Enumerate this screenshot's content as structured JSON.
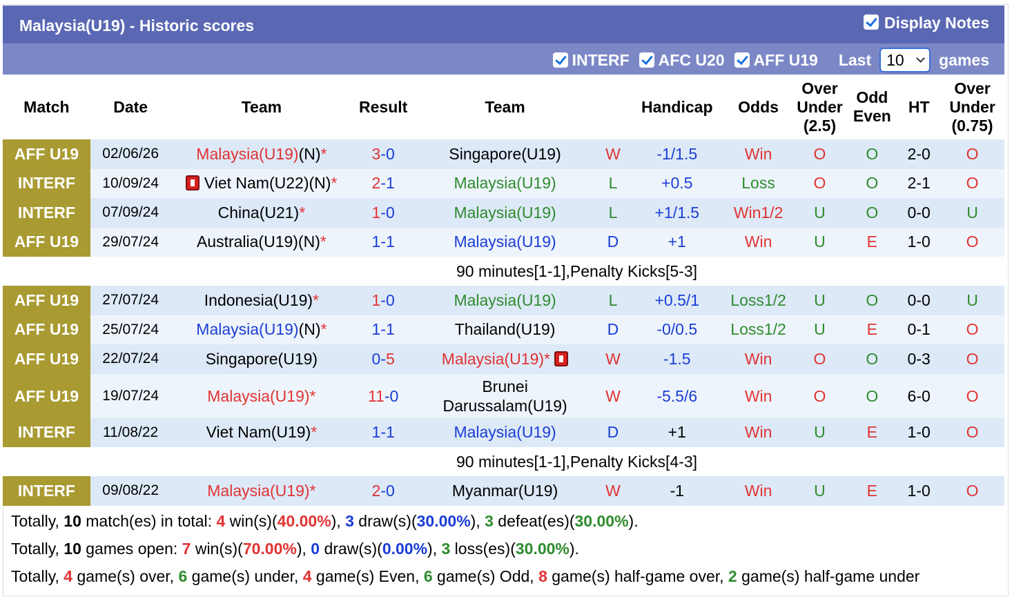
{
  "header": {
    "title": "Malaysia(U19) - Historic scores",
    "display_notes": "Display Notes"
  },
  "filters": {
    "f1": "INTERF",
    "f2": "AFC U20",
    "f3": "AFF U19",
    "last": "Last",
    "last_value": "10",
    "games": "games"
  },
  "columns": {
    "match": "Match",
    "date": "Date",
    "team": "Team",
    "result": "Result",
    "handicap": "Handicap",
    "odds": "Odds",
    "ou_l1": "Over",
    "ou_l2": "Under",
    "ou_l3": "(2.5)",
    "oe_l1": "Odd",
    "oe_l2": "Even",
    "ht": "HT",
    "ou2_l1": "Over",
    "ou2_l2": "Under",
    "ou2_l3": "(0.75)"
  },
  "rows": [
    {
      "comp": "AFF U19",
      "date": "02/06/26",
      "home": "Malaysia(U19)",
      "home_suffix": "(N)",
      "star": "*",
      "score_h": "3",
      "dash": "-",
      "score_a": "0",
      "away": "Singapore(U19)",
      "res": "W",
      "hcp": "-1/1.5",
      "odds": "Win",
      "ou": "O",
      "oe": "O",
      "ht": "2-0",
      "ou2": "O"
    },
    {
      "comp": "INTERF",
      "date": "10/09/24",
      "home": "Viet Nam(U22)(N)",
      "star": "*",
      "score_h": "2",
      "dash": "-",
      "score_a": "1",
      "away": "Malaysia(U19)",
      "res": "L",
      "hcp": "+0.5",
      "odds": "Loss",
      "ou": "O",
      "oe": "O",
      "ht": "2-1",
      "ou2": "O"
    },
    {
      "comp": "INTERF",
      "date": "07/09/24",
      "home": "China(U21)",
      "star": "*",
      "score_h": "1",
      "dash": "-",
      "score_a": "0",
      "away": "Malaysia(U19)",
      "res": "L",
      "hcp": "+1/1.5",
      "odds": "Win1/2",
      "ou": "U",
      "oe": "O",
      "ht": "0-0",
      "ou2": "U"
    },
    {
      "comp": "AFF U19",
      "date": "29/07/24",
      "home": "Australia(U19)(N)",
      "star": "*",
      "score_h": "1",
      "dash": "-",
      "score_a": "1",
      "away": "Malaysia(U19)",
      "res": "D",
      "hcp": "+1",
      "odds": "Win",
      "ou": "U",
      "oe": "E",
      "ht": "1-0",
      "ou2": "O"
    },
    {
      "note": "90 minutes[1-1],Penalty Kicks[5-3]"
    },
    {
      "comp": "AFF U19",
      "date": "27/07/24",
      "home": "Indonesia(U19)",
      "star": "*",
      "score_h": "1",
      "dash": "-",
      "score_a": "0",
      "away": "Malaysia(U19)",
      "res": "L",
      "hcp": "+0.5/1",
      "odds": "Loss1/2",
      "ou": "U",
      "oe": "O",
      "ht": "0-0",
      "ou2": "U"
    },
    {
      "comp": "AFF U19",
      "date": "25/07/24",
      "home": "Malaysia(U19)",
      "home_suffix": "(N)",
      "star": "*",
      "score_h": "1",
      "dash": "-",
      "score_a": "1",
      "away": "Thailand(U19)",
      "res": "D",
      "hcp": "-0/0.5",
      "odds": "Loss1/2",
      "ou": "U",
      "oe": "E",
      "ht": "0-1",
      "ou2": "O"
    },
    {
      "comp": "AFF U19",
      "date": "22/07/24",
      "home": "Singapore(U19)",
      "score_h": "0",
      "dash": "-",
      "score_a": "5",
      "away": "Malaysia(U19)",
      "away_star": "*",
      "res": "W",
      "hcp": "-1.5",
      "odds": "Win",
      "ou": "O",
      "oe": "O",
      "ht": "0-3",
      "ou2": "O"
    },
    {
      "comp": "AFF U19",
      "date": "19/07/24",
      "home": "Malaysia(U19)",
      "star": "*",
      "score_h": "11",
      "dash": "-",
      "score_a": "0",
      "away": "Brunei Darussalam(U19)",
      "res": "W",
      "hcp": "-5.5/6",
      "odds": "Win",
      "ou": "O",
      "oe": "O",
      "ht": "6-0",
      "ou2": "O"
    },
    {
      "comp": "INTERF",
      "date": "11/08/22",
      "home": "Viet Nam(U19)",
      "star": "*",
      "score_h": "1",
      "dash": "-",
      "score_a": "1",
      "away": "Malaysia(U19)",
      "res": "D",
      "hcp": "+1",
      "odds": "Win",
      "ou": "U",
      "oe": "E",
      "ht": "1-0",
      "ou2": "O"
    },
    {
      "note": "90 minutes[1-1],Penalty Kicks[4-3]"
    },
    {
      "comp": "INTERF",
      "date": "09/08/22",
      "home": "Malaysia(U19)",
      "star": "*",
      "score_h": "2",
      "dash": "-",
      "score_a": "0",
      "away": "Myanmar(U19)",
      "res": "W",
      "hcp": "-1",
      "odds": "Win",
      "ou": "U",
      "oe": "E",
      "ht": "1-0",
      "ou2": "O"
    }
  ],
  "summary": {
    "l1": {
      "a": "Totally, ",
      "total": "10",
      "b": " match(es) in total: ",
      "win": "4",
      "c": " win(s)(",
      "win_pct": "40.00%",
      "d": "), ",
      "draw": "3",
      "e": " draw(s)(",
      "draw_pct": "30.00%",
      "f": "), ",
      "def": "3",
      "g": " defeat(es)(",
      "def_pct": "30.00%",
      "h": ")."
    },
    "l2": {
      "a": "Totally, ",
      "total": "10",
      "b": " games open: ",
      "win": "7",
      "c": " win(s)(",
      "win_pct": "70.00%",
      "d": "), ",
      "draw": "0",
      "e": " draw(s)(",
      "draw_pct": "0.00%",
      "f": "), ",
      "loss": "3",
      "g": " loss(es)(",
      "loss_pct": "30.00%",
      "h": ")."
    },
    "l3": {
      "a": "Totally, ",
      "over": "4",
      "b": " game(s) over, ",
      "under": "6",
      "c": " game(s) under, ",
      "even": "4",
      "d": " game(s) Even, ",
      "odd": "6",
      "e": " game(s) Odd, ",
      "hover": "8",
      "f": " game(s) half-game over, ",
      "hunder": "2",
      "g": " game(s) half-game under"
    }
  }
}
